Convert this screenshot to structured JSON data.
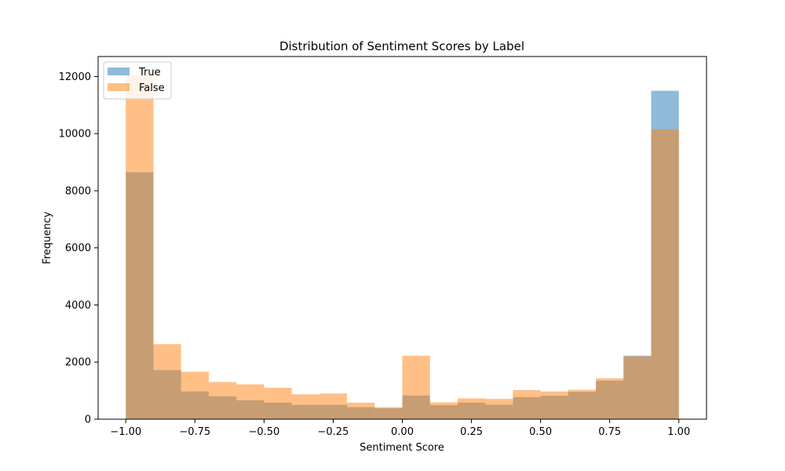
{
  "chart_data": {
    "type": "bar",
    "title": "Distribution of Sentiment Scores by Label",
    "xlabel": "Sentiment Score",
    "ylabel": "Frequency",
    "xlim": [
      -1.1,
      1.1
    ],
    "ylim": [
      0,
      12700
    ],
    "x_ticks": [
      -1.0,
      -0.75,
      -0.5,
      -0.25,
      0.0,
      0.25,
      0.5,
      0.75,
      1.0
    ],
    "x_tick_labels": [
      "−1.00",
      "−0.75",
      "−0.50",
      "−0.25",
      "0.00",
      "0.25",
      "0.50",
      "0.75",
      "1.00"
    ],
    "y_ticks": [
      0,
      2000,
      4000,
      6000,
      8000,
      10000,
      12000
    ],
    "y_tick_labels": [
      "0",
      "2000",
      "4000",
      "6000",
      "8000",
      "10000",
      "12000"
    ],
    "bin_edges": [
      -1.0,
      -0.9,
      -0.8,
      -0.7,
      -0.6,
      -0.5,
      -0.4,
      -0.3,
      -0.2,
      -0.1,
      0.0,
      0.1,
      0.2,
      0.3,
      0.4,
      0.5,
      0.6,
      0.7,
      0.8,
      0.9,
      1.0
    ],
    "series": [
      {
        "name": "True",
        "color": "#1f77b4",
        "alpha": 0.5,
        "values": [
          8650,
          1720,
          970,
          800,
          660,
          580,
          500,
          500,
          420,
          380,
          830,
          490,
          580,
          510,
          770,
          820,
          960,
          1350,
          2220,
          11500
        ]
      },
      {
        "name": "False",
        "color": "#ff7f0e",
        "alpha": 0.5,
        "values": [
          12050,
          2630,
          1660,
          1300,
          1220,
          1100,
          870,
          900,
          580,
          420,
          2220,
          590,
          730,
          710,
          1020,
          970,
          1030,
          1430,
          2200,
          10150
        ]
      }
    ],
    "grid": false,
    "legend_position": "top-left"
  }
}
